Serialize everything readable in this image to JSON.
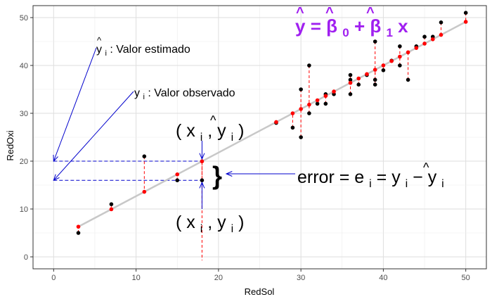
{
  "chart_data": {
    "type": "scatter",
    "xlabel": "RedSol",
    "ylabel": "RedOxi",
    "xlim": [
      -2.5,
      52.5
    ],
    "ylim": [
      -2.5,
      52.5
    ],
    "xticks": [
      0,
      10,
      20,
      30,
      40,
      50
    ],
    "yticks": [
      0,
      10,
      20,
      30,
      40,
      50
    ],
    "grid": true,
    "regression": {
      "intercept": 3.57,
      "slope": 0.911
    },
    "colors": {
      "observed": "#000000",
      "fitted": "#ff0000",
      "fit_line": "#c8c8c8",
      "residual": "#ff0000",
      "arrow": "#0000cc",
      "formula": "#a020f0"
    },
    "observed": [
      {
        "x": 3,
        "y": 5
      },
      {
        "x": 7,
        "y": 11
      },
      {
        "x": 11,
        "y": 21
      },
      {
        "x": 15,
        "y": 16
      },
      {
        "x": 18,
        "y": 16
      },
      {
        "x": 27,
        "y": 28
      },
      {
        "x": 29,
        "y": 27
      },
      {
        "x": 30,
        "y": 25
      },
      {
        "x": 30,
        "y": 35
      },
      {
        "x": 31,
        "y": 30
      },
      {
        "x": 31,
        "y": 40
      },
      {
        "x": 32,
        "y": 32
      },
      {
        "x": 33,
        "y": 32
      },
      {
        "x": 33,
        "y": 34
      },
      {
        "x": 34,
        "y": 34
      },
      {
        "x": 36,
        "y": 34
      },
      {
        "x": 36,
        "y": 37
      },
      {
        "x": 36,
        "y": 38
      },
      {
        "x": 37,
        "y": 36
      },
      {
        "x": 38,
        "y": 38
      },
      {
        "x": 39,
        "y": 36
      },
      {
        "x": 39,
        "y": 37
      },
      {
        "x": 39,
        "y": 45
      },
      {
        "x": 40,
        "y": 39
      },
      {
        "x": 41,
        "y": 41
      },
      {
        "x": 42,
        "y": 40
      },
      {
        "x": 42,
        "y": 44
      },
      {
        "x": 43,
        "y": 37
      },
      {
        "x": 44,
        "y": 44
      },
      {
        "x": 45,
        "y": 46
      },
      {
        "x": 46,
        "y": 46
      },
      {
        "x": 47,
        "y": 49
      },
      {
        "x": 50,
        "y": 51
      }
    ],
    "highlight": {
      "x": 18,
      "y_observed": 16,
      "y_fitted": 20
    },
    "annotations": {
      "estimated_label": {
        "sym": "y",
        "hat": "^",
        "sub": "i",
        "text": " : Valor estimado"
      },
      "observed_label": {
        "sym": "y",
        "sub": "i",
        "text": " : Valor observado"
      },
      "point_fitted": {
        "open": "(",
        "x": "x",
        "xsub": "i",
        "comma": ",",
        "y": "y",
        "hat": "^",
        "ysub": "i",
        "close": ")"
      },
      "point_observed": {
        "open": "(",
        "x": "x",
        "xsub": "i",
        "comma": ",",
        "y": "y",
        "ysub": "i",
        "close": ")"
      },
      "brace": "}",
      "error": {
        "lhs": "error = e",
        "esub": "i",
        "eq": " = y",
        "ysub": "i",
        "minus": " − ",
        "yhat": "y",
        "hat": "^",
        "yhatsub": "i"
      },
      "formula": {
        "y": "y",
        "hat": "^",
        "eq": " = ",
        "b": "β",
        "b0sub": "0",
        "plus": " + ",
        "b1sub": "1",
        "x": "x"
      }
    }
  }
}
